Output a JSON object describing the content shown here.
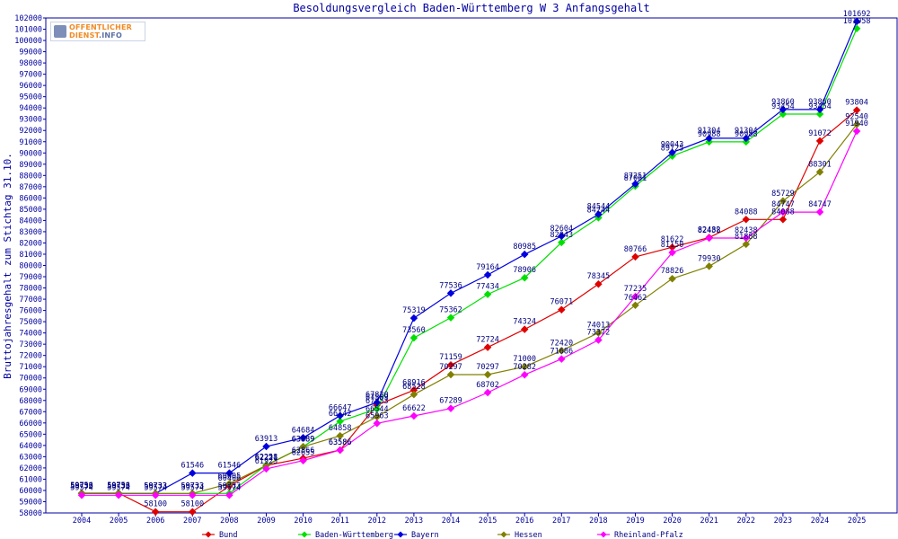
{
  "chart_data": {
    "type": "line",
    "title": "Besoldungsvergleich Baden-Württemberg W 3 Anfangsgehalt",
    "ylabel": "Bruttojahresgehalt zum Stichtag 31.10.",
    "xlabel": "",
    "ylim": [
      58000,
      102000
    ],
    "ytick_step": 1000,
    "grid": false,
    "legend_position": "bottom",
    "categories": [
      "2004",
      "2005",
      "2006",
      "2007",
      "2008",
      "2009",
      "2010",
      "2011",
      "2012",
      "2013",
      "2014",
      "2015",
      "2016",
      "2017",
      "2018",
      "2019",
      "2020",
      "2021",
      "2022",
      "2023",
      "2024",
      "2025"
    ],
    "series": [
      {
        "name": "Bund",
        "color": "#e00000",
        "values": [
          59756,
          59756,
          58100,
          58100,
          60406,
          62221,
          62866,
          63586,
          67589,
          68916,
          71159,
          72724,
          74324,
          76071,
          78345,
          80766,
          81622,
          82482,
          84088,
          84088,
          91072,
          93804
        ]
      },
      {
        "name": "Baden-Württemberg",
        "color": "#00e000",
        "values": [
          59733,
          59733,
          59733,
          59733,
          59733,
          62258,
          63889,
          66142,
          67253,
          73560,
          75362,
          77434,
          78906,
          82043,
          84244,
          87061,
          89725,
          90988,
          90988,
          93454,
          93454,
          101058
        ]
      },
      {
        "name": "Bayern",
        "color": "#0000e0",
        "values": [
          59733,
          59733,
          59733,
          61546,
          61546,
          63913,
          64684,
          66647,
          67820,
          75319,
          77536,
          79164,
          80985,
          82604,
          84544,
          87251,
          90043,
          91304,
          91304,
          93860,
          93860,
          101692
        ]
      },
      {
        "name": "Hessen",
        "color": "#808000",
        "values": [
          59733,
          59733,
          59733,
          59733,
          60605,
          62221,
          63889,
          64858,
          66544,
          68528,
          70297,
          70297,
          71000,
          72420,
          74013,
          76462,
          78826,
          79930,
          81888,
          85729,
          88301,
          92540
        ]
      },
      {
        "name": "Rheinland-Pfalz",
        "color": "#ff00ff",
        "values": [
          59574,
          59574,
          59574,
          59574,
          59574,
          61923,
          62655,
          63586,
          65963,
          66622,
          67289,
          68702,
          70282,
          71686,
          73372,
          77235,
          81150,
          82438,
          82438,
          84747,
          84747,
          91940
        ]
      }
    ]
  },
  "logo": {
    "line1": "OFFENTLICHER",
    "line2_main": "DIENST",
    "line2_suffix": ".INFO"
  }
}
